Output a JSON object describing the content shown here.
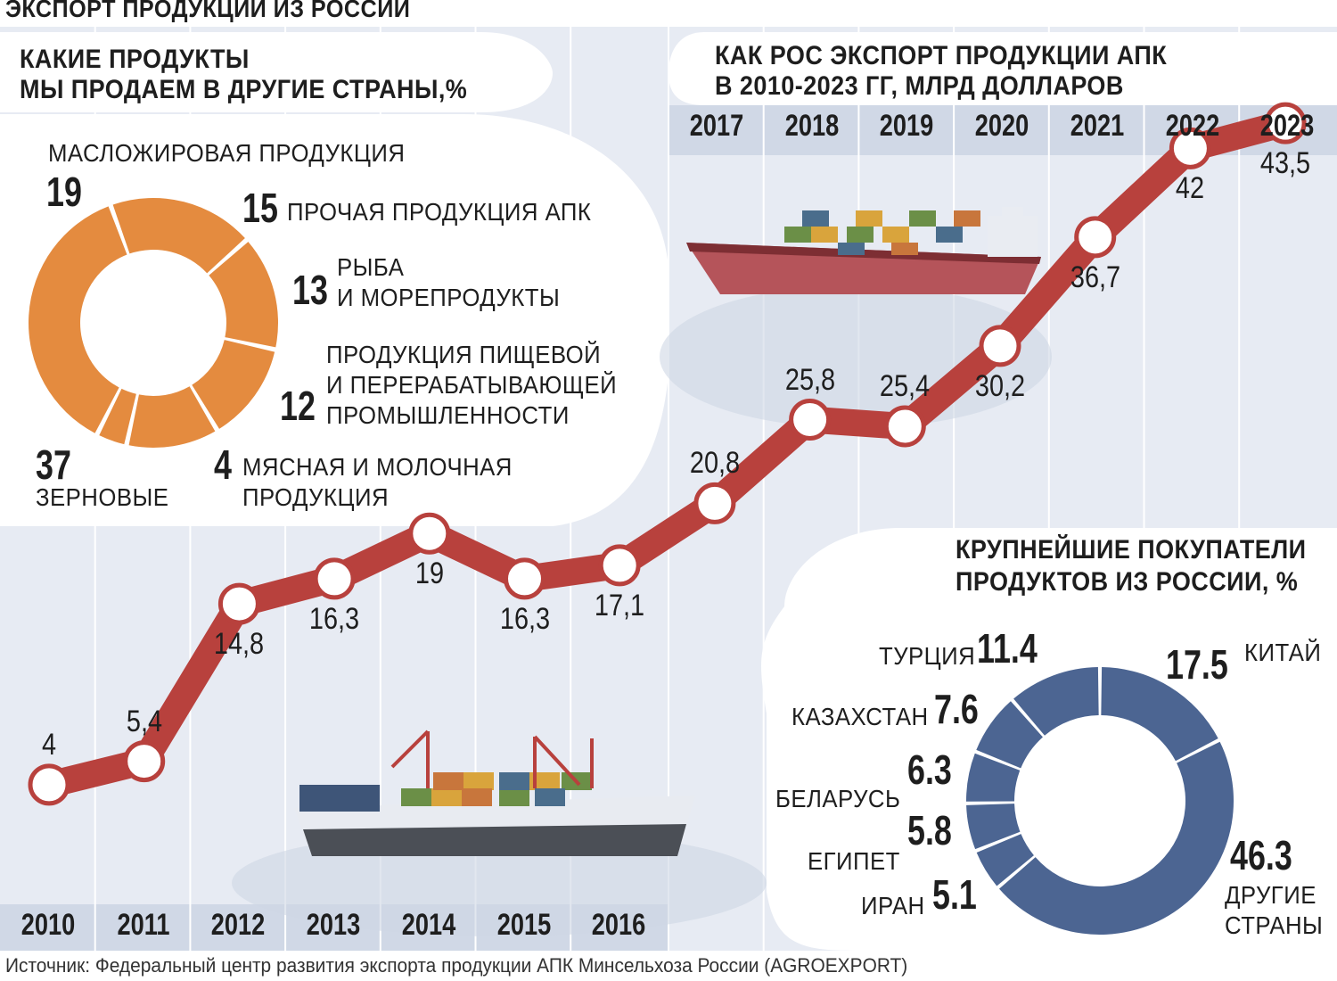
{
  "header": {
    "title": "ЭКСПОРТ ПРОДУКЦИИ ИЗ РОССИИ"
  },
  "colors": {
    "panel_bg": "#e7ebf3",
    "line": "#b8413d",
    "products_donut": "#e48b3f",
    "buyers_donut": "#4c6592",
    "year_strip": "#d0d8e6"
  },
  "products": {
    "title_line1": "КАКИЕ ПРОДУКТЫ",
    "title_line2": "МЫ ПРОДАЕМ В ДРУГИЕ СТРАНЫ,%",
    "items": [
      {
        "value": "37",
        "label_line1": "ЗЕРНОВЫЕ",
        "label_line2": ""
      },
      {
        "value": "19",
        "label_line1": "МАСЛОЖИРОВАЯ ПРОДУКЦИЯ",
        "label_line2": ""
      },
      {
        "value": "15",
        "label_line1": "ПРОЧАЯ ПРОДУКЦИЯ АПК",
        "label_line2": ""
      },
      {
        "value": "13",
        "label_line1": "РЫБА",
        "label_line2": "И МОРЕПРОДУКТЫ"
      },
      {
        "value": "12",
        "label_line1": "ПРОДУКЦИЯ ПИЩЕВОЙ",
        "label_line2": "И ПЕРЕРАБАТЫВАЮЩЕЙ",
        "label_line3": "ПРОМЫШЛЕННОСТИ"
      },
      {
        "value": "4",
        "label_line1": "МЯСНАЯ И МОЛОЧНАЯ",
        "label_line2": "ПРОДУКЦИЯ"
      }
    ]
  },
  "growth": {
    "title_line1": "КАК РОС ЭКСПОРТ ПРОДУКЦИИ АПК",
    "title_line2": "В 2010-2023 ГГ, МЛРД ДОЛЛАРОВ"
  },
  "buyers": {
    "title_line1": "КРУПНЕЙШИЕ ПОКУПАТЕЛИ",
    "title_line2": "ПРОДУКТОВ ИЗ РОССИИ, %",
    "items": [
      {
        "value": "17.5",
        "label_line1": "КИТАЙ",
        "label_line2": ""
      },
      {
        "value": "11.4",
        "label_line1": "ТУРЦИЯ",
        "label_line2": ""
      },
      {
        "value": "7.6",
        "label_line1": "КАЗАХСТАН",
        "label_line2": ""
      },
      {
        "value": "6.3",
        "label_line1": "БЕЛАРУСЬ",
        "label_line2": ""
      },
      {
        "value": "5.8",
        "label_line1": "ЕГИПЕТ",
        "label_line2": ""
      },
      {
        "value": "5.1",
        "label_line1": "ИРАН",
        "label_line2": ""
      },
      {
        "value": "46.3",
        "label_line1": "ДРУГИЕ",
        "label_line2": "СТРАНЫ"
      }
    ]
  },
  "source": "Источник: Федеральный центр развития экспорта продукции АПК Минсельхоза России (AGROEXPORT)",
  "chart_data": [
    {
      "type": "line",
      "title": "КАК РОС ЭКСПОРТ ПРОДУКЦИИ АПК В 2010-2023 ГГ, МЛРД ДОЛЛАРОВ",
      "x": [
        "2010",
        "2011",
        "2012",
        "2013",
        "2014",
        "2015",
        "2016",
        "2017",
        "2018",
        "2019",
        "2020",
        "2021",
        "2022",
        "2023"
      ],
      "values": [
        4,
        5.4,
        14.8,
        16.3,
        19,
        16.3,
        17.1,
        20.8,
        25.8,
        25.4,
        30.2,
        36.7,
        42,
        43.5
      ],
      "value_labels": [
        "4",
        "5,4",
        "14,8",
        "16,3",
        "19",
        "16,3",
        "17,1",
        "20,8",
        "25,8",
        "25,4",
        "30,2",
        "36,7",
        "42",
        "43,5"
      ],
      "ylim": [
        0,
        45
      ]
    },
    {
      "type": "pie",
      "title": "КАКИЕ ПРОДУКТЫ МЫ ПРОДАЕМ В ДРУГИЕ СТРАНЫ,%",
      "categories": [
        "ЗЕРНОВЫЕ",
        "МАСЛОЖИРОВАЯ ПРОДУКЦИЯ",
        "ПРОЧАЯ ПРОДУКЦИЯ АПК",
        "РЫБА И МОРЕПРОДУКТЫ",
        "ПРОДУКЦИЯ ПИЩЕВОЙ И ПЕРЕРАБАТЫВАЮЩЕЙ ПРОМЫШЛЕННОСТИ",
        "МЯСНАЯ И МОЛОЧНАЯ ПРОДУКЦИЯ"
      ],
      "values": [
        37,
        19,
        15,
        13,
        12,
        4
      ]
    },
    {
      "type": "pie",
      "title": "КРУПНЕЙШИЕ ПОКУПАТЕЛИ ПРОДУКТОВ ИЗ РОССИИ, %",
      "categories": [
        "КИТАЙ",
        "ДРУГИЕ СТРАНЫ",
        "ИРАН",
        "ЕГИПЕТ",
        "БЕЛАРУСЬ",
        "КАЗАХСТАН",
        "ТУРЦИЯ"
      ],
      "values": [
        17.5,
        46.3,
        5.1,
        5.8,
        6.3,
        7.6,
        11.4
      ]
    }
  ]
}
